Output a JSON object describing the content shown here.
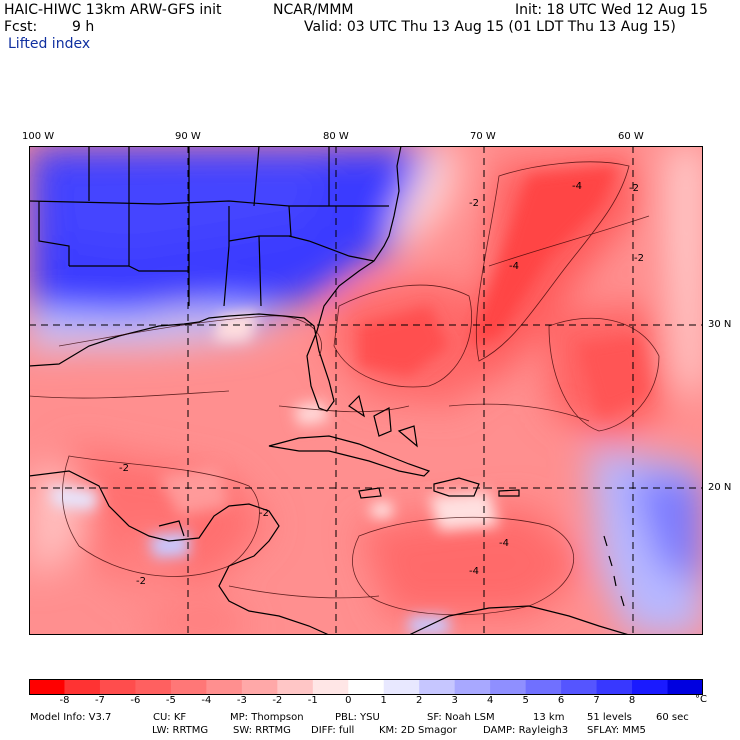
{
  "header": {
    "model_title": "HAIC-HIWC 13km ARW-GFS init",
    "org": "NCAR/MMM",
    "init": "Init: 18 UTC Wed 12 Aug 15",
    "fcst_label": "Fcst:",
    "fcst_value": "9 h",
    "valid": "Valid: 03 UTC Thu 13 Aug 15 (01 LDT Thu 13 Aug 15)",
    "field": "Lifted index"
  },
  "map": {
    "lon_labels": [
      "100 W",
      "90 W",
      "80 W",
      "70 W",
      "60 W"
    ],
    "lat_labels": [
      "30 N",
      "20 N"
    ],
    "contour_labels": [
      "-4",
      "-2",
      "-4",
      "-2",
      "-2",
      "-4",
      "-2",
      "-2",
      "-4",
      "-2"
    ]
  },
  "colorbar": {
    "labels": [
      "-8",
      "-7",
      "-6",
      "-5",
      "-4",
      "-3",
      "-2",
      "-1",
      "0",
      "1",
      "2",
      "3",
      "4",
      "5",
      "6",
      "7",
      "8"
    ],
    "unit": "°C",
    "colors": [
      "#ff0000",
      "#ff3333",
      "#ff4d4d",
      "#ff6060",
      "#ff7777",
      "#ff8f8f",
      "#ffa8a8",
      "#ffc6c6",
      "#ffe6e6",
      "#ffffff",
      "#e8e8ff",
      "#c6c6ff",
      "#a8a8ff",
      "#8f8fff",
      "#7070ff",
      "#5555ff",
      "#3838ff",
      "#1a1aff",
      "#0000e0"
    ]
  },
  "model_info": {
    "line1": [
      "Model Info: V3.7",
      "CU: KF",
      "MP: Thompson",
      "PBL: YSU",
      "SF: Noah LSM",
      "13 km",
      "51 levels",
      "60 sec"
    ],
    "line2": [
      "LW: RRTMG",
      "SW: RRTMG",
      "DIFF: full",
      "KM: 2D Smagor",
      "DAMP: Rayleigh3",
      "SFLAY: MM5"
    ]
  }
}
